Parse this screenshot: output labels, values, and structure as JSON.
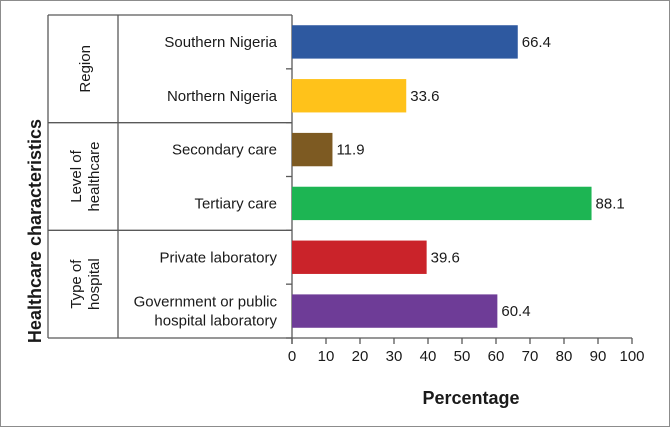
{
  "chart_data": {
    "type": "bar",
    "orientation": "horizontal",
    "ylabel": "Healthcare characteristics",
    "xlabel": "Percentage",
    "xlim": [
      0,
      100
    ],
    "xticks": [
      0,
      10,
      20,
      30,
      40,
      50,
      60,
      70,
      80,
      90,
      100
    ],
    "groups": [
      {
        "label_lines": [
          "Region"
        ],
        "items": [
          {
            "label_lines": [
              "Southern Nigeria"
            ],
            "value": 66.4,
            "value_label": "66.4",
            "color": "#2E59A0"
          },
          {
            "label_lines": [
              "Northern Nigeria"
            ],
            "value": 33.6,
            "value_label": "33.6",
            "color": "#FFC21A"
          }
        ]
      },
      {
        "label_lines": [
          "Level of",
          "healthcare"
        ],
        "items": [
          {
            "label_lines": [
              "Secondary care"
            ],
            "value": 11.9,
            "value_label": "11.9",
            "color": "#7D5A22"
          },
          {
            "label_lines": [
              "Tertiary care"
            ],
            "value": 88.1,
            "value_label": "88.1",
            "color": "#1DB553"
          }
        ]
      },
      {
        "label_lines": [
          "Type of",
          "hospital"
        ],
        "items": [
          {
            "label_lines": [
              "Private laboratory"
            ],
            "value": 39.6,
            "value_label": "39.6",
            "color": "#CA232A"
          },
          {
            "label_lines": [
              "Government or public",
              "hospital laboratory"
            ],
            "value": 60.4,
            "value_label": "60.4",
            "color": "#6E3C97"
          }
        ]
      }
    ]
  }
}
